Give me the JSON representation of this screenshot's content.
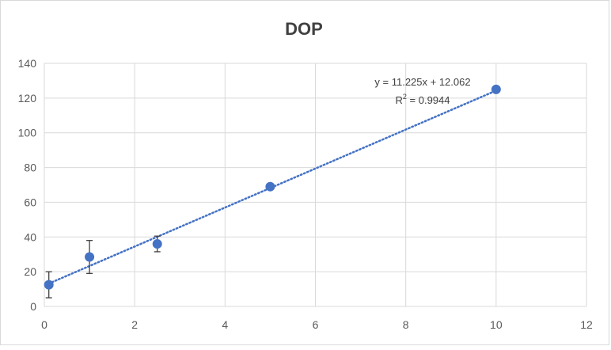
{
  "chart_data": {
    "type": "scatter",
    "title": "DOP",
    "xlabel": "",
    "ylabel": "",
    "xlim": [
      0,
      12
    ],
    "ylim": [
      0,
      140
    ],
    "x_ticks": [
      "0",
      "2",
      "4",
      "6",
      "8",
      "10",
      "12"
    ],
    "y_ticks": [
      "0",
      "20",
      "40",
      "60",
      "80",
      "100",
      "120",
      "140"
    ],
    "grid": true,
    "legend": "none",
    "series": [
      {
        "points": [
          {
            "x": 0.1,
            "y": 12.5,
            "err": 7.5
          },
          {
            "x": 1,
            "y": 28.5,
            "err": 9.5
          },
          {
            "x": 2.5,
            "y": 36,
            "err": 4.5
          },
          {
            "x": 5,
            "y": 69,
            "err": 0.5
          },
          {
            "x": 10,
            "y": 125,
            "err": 0.5
          }
        ],
        "color": "#4472c4"
      }
    ],
    "trendline": {
      "type": "linear",
      "slope": 11.225,
      "intercept": 12.062,
      "x_range": [
        0.1,
        10
      ],
      "color": "#4472c4",
      "style": "dotted",
      "equation_label": "y = 11.225x + 12.062",
      "r2_label_prefix": "R",
      "r2_label_sup": "2",
      "r2_label_value": " = 0.9944"
    },
    "colors": {
      "grid": "#d9d9d9",
      "axis_text": "#595959",
      "error_bar": "#404040"
    }
  }
}
